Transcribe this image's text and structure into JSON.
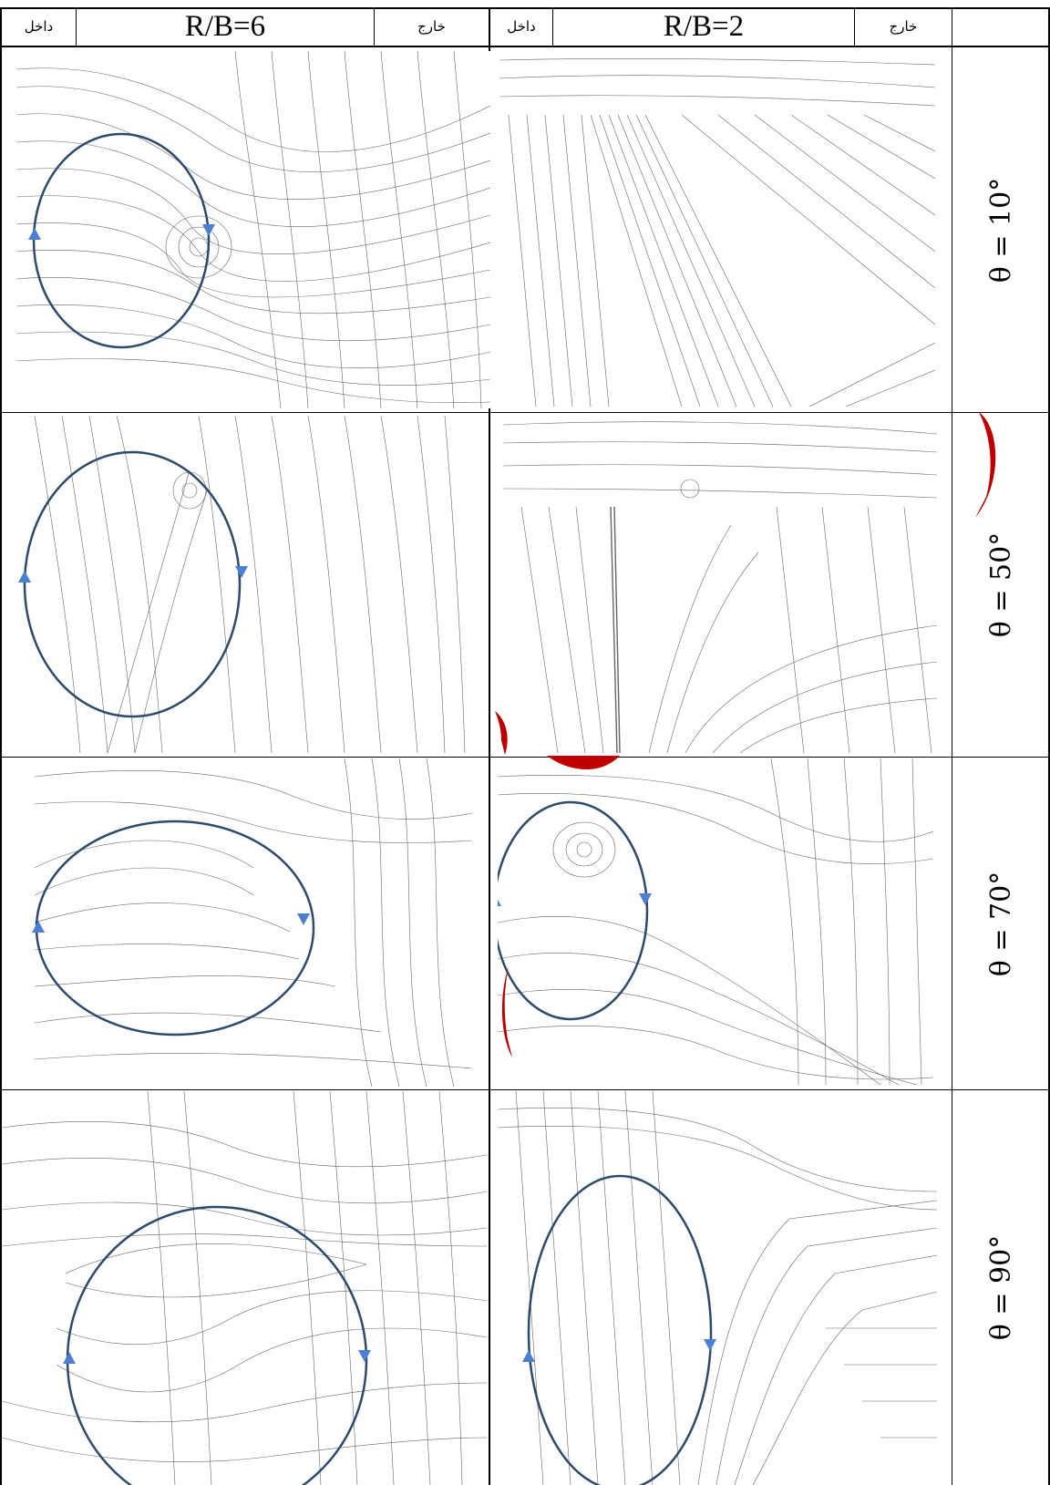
{
  "header": {
    "left_group": {
      "inside_label": "داخل",
      "title": "R/B=6",
      "outside_label": "خارج"
    },
    "right_group": {
      "inside_label": "داخل",
      "title": "R/B=2",
      "outside_label": "خارج"
    }
  },
  "rows": [
    {
      "angle_label": "θ = 10°"
    },
    {
      "angle_label": "θ = 50°"
    },
    {
      "angle_label": "θ = 70°"
    },
    {
      "angle_label": "θ = 90°"
    }
  ],
  "colors": {
    "vortex_ellipse": "#2e4a6b",
    "direction_arrow": "#4a7fd4",
    "streamline": "#333333",
    "accent_red": "#c00000",
    "grid": "#000000"
  },
  "icons": {
    "up_arrow": "triangle-up",
    "down_arrow": "triangle-down"
  }
}
